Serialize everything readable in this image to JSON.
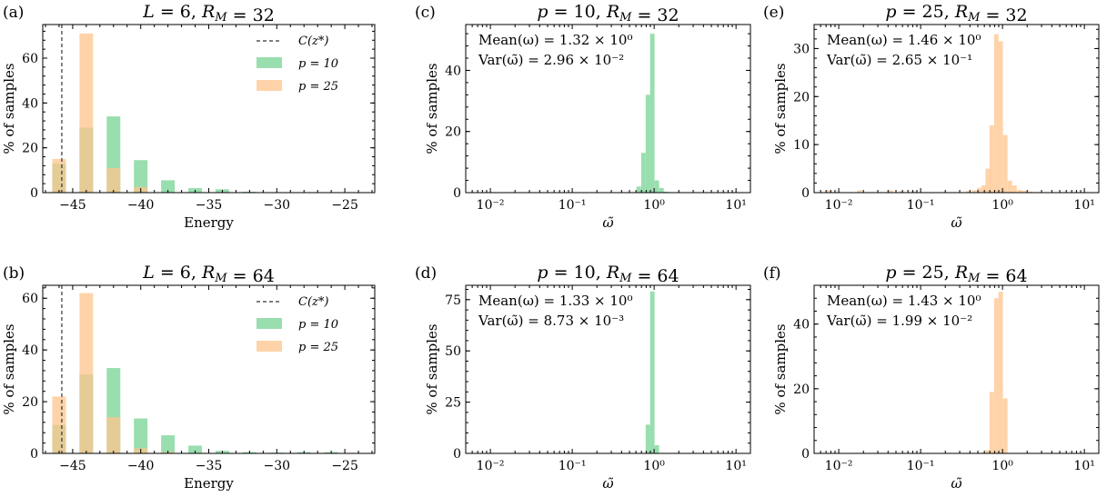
{
  "colors": {
    "green": "#7fd69a",
    "orange": "#ffc48c",
    "overlap": "#c9b35a",
    "axis": "#000000",
    "cstar": "#333333"
  },
  "chart_data": [
    {
      "id": "a",
      "type": "bar",
      "panel_label": "(a)",
      "title": "L = 6, R_M = 32",
      "xlabel": "Energy",
      "ylabel": "% of samples",
      "xlim": [
        -47.2,
        -22.8
      ],
      "ylim": [
        0,
        75
      ],
      "xticks": [
        -45,
        -40,
        -35,
        -30,
        -25
      ],
      "xtick_labels": [
        "−45",
        "−40",
        "−35",
        "−30",
        "−25"
      ],
      "yticks": [
        0,
        20,
        40,
        60
      ],
      "ytick_labels": [
        "0",
        "20",
        "40",
        "60"
      ],
      "vline": {
        "x": -45.8,
        "label": "C(z*)"
      },
      "legend": {
        "placement": "top-right",
        "entries": [
          "C(z*)",
          "p = 10",
          "p = 25"
        ]
      },
      "bin_width": 1.0,
      "series": [
        {
          "name": "p = 10",
          "color": "green",
          "x": [
            -46.0,
            -44.0,
            -42.0,
            -40.0,
            -38.0,
            -36.0,
            -34.0,
            -32.0,
            -30.0
          ],
          "values": [
            13,
            29,
            34,
            14.5,
            5.5,
            2,
            1.5,
            0.4,
            0.2
          ]
        },
        {
          "name": "p = 25",
          "color": "orange",
          "x": [
            -46.0,
            -44.0,
            -42.0,
            -40.0
          ],
          "values": [
            15,
            71,
            11,
            2.5
          ]
        }
      ]
    },
    {
      "id": "b",
      "type": "bar",
      "panel_label": "(b)",
      "title": "L = 6, R_M = 64",
      "xlabel": "Energy",
      "ylabel": "% of samples",
      "xlim": [
        -47.2,
        -22.8
      ],
      "ylim": [
        0,
        65
      ],
      "xticks": [
        -45,
        -40,
        -35,
        -30,
        -25
      ],
      "xtick_labels": [
        "−45",
        "−40",
        "−35",
        "−30",
        "−25"
      ],
      "yticks": [
        0,
        20,
        40,
        60
      ],
      "ytick_labels": [
        "0",
        "20",
        "40",
        "60"
      ],
      "vline": {
        "x": -45.8,
        "label": "C(z*)"
      },
      "legend": {
        "placement": "top-right",
        "entries": [
          "C(z*)",
          "p = 10",
          "p = 25"
        ]
      },
      "bin_width": 1.0,
      "series": [
        {
          "name": "p = 10",
          "color": "green",
          "x": [
            -46.0,
            -44.0,
            -42.0,
            -40.0,
            -38.0,
            -36.0,
            -34.0,
            -32.0,
            -30.0,
            -28.0,
            -26.0
          ],
          "values": [
            11,
            30.5,
            33,
            13.5,
            7,
            3,
            1,
            0.5,
            0.3,
            0.5,
            0.5
          ]
        },
        {
          "name": "p = 25",
          "color": "orange",
          "x": [
            -46.0,
            -44.0,
            -42.0,
            -40.0,
            -38.0
          ],
          "values": [
            22,
            62,
            14,
            2,
            0.5
          ]
        }
      ]
    },
    {
      "id": "c",
      "type": "bar",
      "panel_label": "(c)",
      "title": "p = 10, R_M = 32",
      "xlabel": "ω̃",
      "ylabel": "% of samples",
      "xscale": "log",
      "xlim": [
        0.005,
        15
      ],
      "ylim": [
        0,
        55
      ],
      "xticks": [
        0.01,
        0.1,
        1,
        10
      ],
      "xtick_labels": [
        "10⁻²",
        "10⁻¹",
        "10⁰",
        "10¹"
      ],
      "yticks": [
        0,
        20,
        40
      ],
      "ytick_labels": [
        "0",
        "20",
        "40"
      ],
      "annotations": [
        "Mean(ω) = 1.32 × 10⁰",
        "Var(ω̃) = 2.96 × 10⁻²"
      ],
      "series": [
        {
          "name": "",
          "color": "green",
          "x": [
            0.65,
            0.74,
            0.84,
            0.95,
            1.08,
            1.23,
            1.4
          ],
          "values": [
            2,
            13,
            32,
            52,
            4,
            1.5,
            0.3
          ]
        }
      ]
    },
    {
      "id": "d",
      "type": "bar",
      "panel_label": "(d)",
      "title": "p = 10, R_M = 64",
      "xlabel": "ω̃",
      "ylabel": "% of samples",
      "xscale": "log",
      "xlim": [
        0.005,
        15
      ],
      "ylim": [
        0,
        82
      ],
      "xticks": [
        0.01,
        0.1,
        1,
        10
      ],
      "xtick_labels": [
        "10⁻²",
        "10⁻¹",
        "10⁰",
        "10¹"
      ],
      "yticks": [
        0,
        25,
        50,
        75
      ],
      "ytick_labels": [
        "0",
        "25",
        "50",
        "75"
      ],
      "annotations": [
        "Mean(ω) = 1.33 × 10⁰",
        "Var(ω̃) = 8.73 × 10⁻³"
      ],
      "series": [
        {
          "name": "",
          "color": "green",
          "x": [
            0.84,
            0.95,
            1.08
          ],
          "values": [
            14,
            79,
            4
          ]
        }
      ]
    },
    {
      "id": "e",
      "type": "bar",
      "panel_label": "(e)",
      "title": "p = 25, R_M = 32",
      "xlabel": "ω̃",
      "ylabel": "% of samples",
      "xscale": "log",
      "xlim": [
        0.005,
        15
      ],
      "ylim": [
        0,
        35
      ],
      "xticks": [
        0.01,
        0.1,
        1,
        10
      ],
      "xtick_labels": [
        "10⁻²",
        "10⁻¹",
        "10⁰",
        "10¹"
      ],
      "yticks": [
        0,
        10,
        20,
        30
      ],
      "ytick_labels": [
        "0",
        "10",
        "20",
        "30"
      ],
      "annotations": [
        "Mean(ω) = 1.46 × 10⁰",
        "Var(ω̃) = 2.65 × 10⁻¹"
      ],
      "series": [
        {
          "name": "",
          "color": "orange",
          "x": [
            0.0075,
            0.018,
            0.043,
            0.058,
            0.082,
            0.38,
            0.45,
            0.52,
            0.59,
            0.66,
            0.74,
            0.84,
            0.95,
            1.08,
            1.23,
            1.4,
            1.62,
            1.85,
            2.2
          ],
          "values": [
            0.5,
            0.5,
            0.5,
            0.3,
            0.3,
            0.3,
            0.5,
            1,
            1.5,
            5,
            14,
            33,
            31.5,
            12,
            2.5,
            1.5,
            0.6,
            0.4,
            0.2
          ]
        }
      ]
    },
    {
      "id": "f",
      "type": "bar",
      "panel_label": "(f)",
      "title": "p = 25, R_M = 64",
      "xlabel": "ω̃",
      "ylabel": "% of samples",
      "xscale": "log",
      "xlim": [
        0.005,
        15
      ],
      "ylim": [
        0,
        52
      ],
      "xticks": [
        0.01,
        0.1,
        1,
        10
      ],
      "xtick_labels": [
        "10⁻²",
        "10⁻¹",
        "10⁰",
        "10¹"
      ],
      "yticks": [
        0,
        20,
        40
      ],
      "ytick_labels": [
        "0",
        "20",
        "40"
      ],
      "annotations": [
        "Mean(ω) = 1.43 × 10⁰",
        "Var(ω̃) = 1.99 × 10⁻²"
      ],
      "series": [
        {
          "name": "",
          "color": "orange",
          "x": [
            0.59,
            0.66,
            0.74,
            0.84,
            0.95,
            1.08
          ],
          "values": [
            0.3,
            1,
            19,
            48,
            50,
            17
          ]
        }
      ]
    }
  ]
}
